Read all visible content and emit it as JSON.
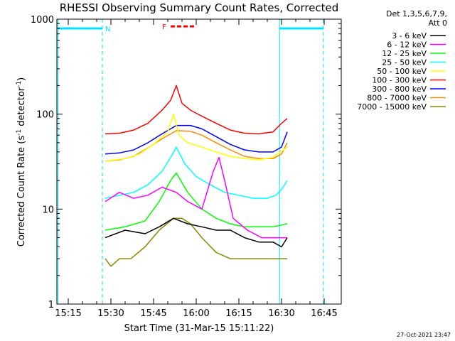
{
  "chart_data": {
    "type": "line",
    "title": "RHESSI Observing Summary Count Rates, Corrected",
    "xlabel": "Start Time (31-Mar-15 15:11:22)",
    "ylabel": "Corrected Count Rate (s",
    "ylabel_sup1": "-1",
    "ylabel_mid": " detector",
    "ylabel_sup2": "-1",
    "ylabel_end": ")",
    "yscale": "log",
    "ylim": [
      1,
      1000
    ],
    "xlim": [
      "15:11",
      "16:51"
    ],
    "x_ticks": [
      "15:15",
      "15:30",
      "15:45",
      "16:00",
      "16:15",
      "16:30",
      "16:45"
    ],
    "x_tick_minutes": [
      915,
      930,
      945,
      960,
      975,
      990,
      1005
    ],
    "y_ticks": [
      "1",
      "10",
      "100",
      "1000"
    ],
    "y_tick_values": [
      1,
      10,
      100,
      1000
    ],
    "detector_info": [
      "Det 1,3,5,6,7,9,",
      "Att 0"
    ],
    "series": [
      {
        "name": "3 - 6 keV",
        "color": "#000000",
        "x": [
          928,
          935,
          942,
          947,
          952,
          957,
          962,
          967,
          972,
          977,
          982,
          987,
          990,
          992
        ],
        "values": [
          5,
          6,
          5.5,
          6.5,
          8,
          7,
          6.5,
          6,
          6,
          5,
          4.5,
          4.5,
          4,
          5
        ]
      },
      {
        "name": "6 - 12 keV",
        "color": "#ff00ff",
        "x": [
          928,
          933,
          938,
          943,
          948,
          953,
          957,
          962,
          966,
          968,
          970,
          973,
          978,
          983,
          988,
          992
        ],
        "values": [
          12,
          15,
          13,
          14,
          17,
          15,
          12,
          10,
          25,
          35,
          20,
          8,
          6,
          5,
          5,
          5
        ]
      },
      {
        "name": "12 - 25 keV",
        "color": "#00ff00",
        "x": [
          928,
          935,
          942,
          947,
          951,
          953,
          957,
          962,
          967,
          972,
          977,
          982,
          987,
          992
        ],
        "values": [
          6,
          6.5,
          7.5,
          12,
          20,
          24,
          15,
          10,
          8,
          7,
          6.5,
          6.5,
          6.5,
          7
        ]
      },
      {
        "name": "25 - 50 keV",
        "color": "#00ffff",
        "x": [
          928,
          933,
          938,
          943,
          948,
          951,
          953,
          956,
          960,
          965,
          970,
          975,
          980,
          985,
          988,
          990,
          992
        ],
        "values": [
          13,
          14,
          15,
          18,
          25,
          35,
          45,
          30,
          22,
          18,
          15,
          14,
          13,
          13,
          14,
          16,
          20
        ]
      },
      {
        "name": "50 - 100 keV",
        "color": "#ffff00",
        "x": [
          928,
          935,
          940,
          945,
          950,
          952,
          954,
          957,
          962,
          967,
          972,
          977,
          982,
          987,
          992
        ],
        "values": [
          32,
          34,
          38,
          48,
          65,
          100,
          60,
          50,
          45,
          40,
          36,
          34,
          33,
          35,
          45
        ]
      },
      {
        "name": "100 - 300 keV",
        "color": "#ff0000",
        "x": [
          928,
          933,
          938,
          943,
          948,
          951,
          953,
          955,
          958,
          962,
          967,
          972,
          977,
          982,
          987,
          990,
          992
        ],
        "values": [
          62,
          63,
          68,
          80,
          110,
          140,
          200,
          130,
          110,
          95,
          80,
          68,
          63,
          62,
          65,
          80,
          90
        ]
      },
      {
        "name": "300 - 800 keV",
        "color": "#0000ff",
        "x": [
          928,
          933,
          938,
          943,
          948,
          953,
          958,
          962,
          967,
          972,
          977,
          982,
          987,
          990,
          992
        ],
        "values": [
          38,
          39,
          42,
          50,
          62,
          76,
          76,
          70,
          58,
          48,
          42,
          40,
          40,
          45,
          65
        ]
      },
      {
        "name": "800 - 7000 keV",
        "color": "#ff8800",
        "x": [
          928,
          933,
          938,
          943,
          948,
          953,
          958,
          962,
          967,
          972,
          977,
          982,
          987,
          990,
          992
        ],
        "values": [
          32,
          33,
          36,
          44,
          55,
          67,
          66,
          60,
          50,
          42,
          36,
          34,
          34,
          38,
          50
        ]
      },
      {
        "name": "7000 - 15000 keV",
        "color": "#888800",
        "x": [
          928,
          930,
          933,
          937,
          942,
          947,
          952,
          955,
          958,
          962,
          967,
          972,
          977,
          982,
          987,
          992
        ],
        "values": [
          3,
          2.5,
          3,
          3,
          4,
          6,
          8,
          8,
          7,
          5,
          3.5,
          3,
          3,
          3,
          3,
          3
        ]
      }
    ],
    "attenuator_lines": [
      {
        "label": "N",
        "x_start": 911.4,
        "x_end": 927,
        "y": 800
      },
      {
        "label": "",
        "x_start": 989.3,
        "x_end": 1004.7,
        "y": 800
      }
    ],
    "vlines_dashed": [
      927,
      1004.7
    ],
    "vlines_solid": [
      911.4,
      989.3
    ],
    "flare_marker": {
      "label": "F",
      "x_start": 951,
      "x_end": 960,
      "y": 840
    },
    "legend_position": "top-right, outside plot",
    "grid": false
  },
  "timestamp": "27-Oct-2021 23:47",
  "colors": {
    "attenuator": "#00e0ff",
    "flare": "#ff0000",
    "background": "#ffffff",
    "axes": "#000000"
  }
}
